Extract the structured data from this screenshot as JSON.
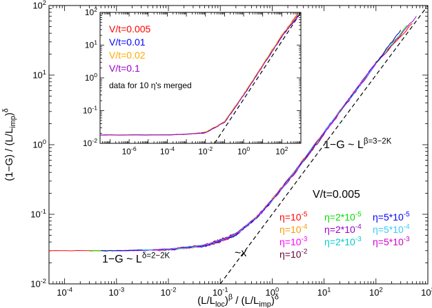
{
  "chart_data": [
    {
      "type": "line",
      "scale": "log-log",
      "xlabel": "(L/L_loc)^β / (L/L_imp)^δ",
      "ylabel": "(1−G) / (L/L_imp)^δ",
      "xlim": [
        5e-05,
        1000
      ],
      "ylim": [
        0.01,
        100
      ],
      "x_ticks": [
        "10^-4",
        "10^-3",
        "10^-2",
        "10^-1",
        "10^0",
        "10^1",
        "10^2",
        "10^3"
      ],
      "y_ticks": [
        "10^-2",
        "10^-1",
        "10^0",
        "10^1",
        "10^2"
      ],
      "legend_title": "V/t=0.005",
      "legend": [
        {
          "name": "η=10^-5",
          "color": "#ff0000"
        },
        {
          "name": "η=10^-4",
          "color": "#ff9900"
        },
        {
          "name": "η=10^-3",
          "color": "#ff00ff"
        },
        {
          "name": "η=10^-2",
          "color": "#660033"
        },
        {
          "name": "η=2*10^-5",
          "color": "#00dd00"
        },
        {
          "name": "η=2*10^-4",
          "color": "#9900cc"
        },
        {
          "name": "η=2*10^-3",
          "color": "#00cccc"
        },
        {
          "name": "η=5*10^-5",
          "color": "#0000ff"
        },
        {
          "name": "η=5*10^-4",
          "color": "#33ccff"
        },
        {
          "name": "η=5*10^-3",
          "color": "#cc00cc"
        }
      ],
      "annotations": [
        {
          "text": "1−G ~ L^{β=3−2K}"
        },
        {
          "text": "1−G ~ L^{δ=2−2K}"
        },
        {
          "text": "~x"
        }
      ],
      "series": [
        {
          "color": "#ff0000",
          "x": [
            5e-05,
            0.001,
            0.01,
            0.05,
            0.1,
            0.2,
            0.5,
            1,
            3,
            10,
            30,
            100,
            500
          ],
          "y": [
            0.03,
            0.03,
            0.031,
            0.035,
            0.04,
            0.05,
            0.09,
            0.16,
            0.45,
            1.5,
            4.5,
            15,
            55
          ]
        },
        {
          "color": "#ff9900",
          "x": [
            0.0003,
            0.001,
            0.01,
            0.05,
            0.1,
            0.2,
            0.5,
            1,
            3,
            10,
            30,
            100,
            300
          ],
          "y": [
            0.03,
            0.03,
            0.031,
            0.035,
            0.041,
            0.052,
            0.092,
            0.165,
            0.46,
            1.5,
            4.5,
            15,
            45
          ]
        },
        {
          "color": "#ff00ff",
          "x": [
            0.002,
            0.01,
            0.05,
            0.1,
            0.2,
            0.5,
            1,
            3,
            10,
            30,
            100
          ],
          "y": [
            0.03,
            0.031,
            0.036,
            0.042,
            0.052,
            0.09,
            0.16,
            0.45,
            1.45,
            4.4,
            14.5
          ]
        },
        {
          "color": "#660033",
          "x": [
            0.02,
            0.05,
            0.1,
            0.2,
            0.5,
            1,
            3,
            10
          ],
          "y": [
            0.033,
            0.036,
            0.043,
            0.053,
            0.09,
            0.16,
            0.44,
            1.4
          ]
        },
        {
          "color": "#00dd00",
          "x": [
            0.0003,
            0.001,
            0.01,
            0.05,
            0.1,
            0.2,
            0.5,
            1,
            3,
            10,
            30,
            100,
            400
          ],
          "y": [
            0.03,
            0.03,
            0.031,
            0.036,
            0.042,
            0.051,
            0.089,
            0.158,
            0.44,
            1.48,
            4.4,
            14.8,
            52
          ]
        },
        {
          "color": "#9900cc",
          "x": [
            0.001,
            0.01,
            0.05,
            0.1,
            0.2,
            0.5,
            1,
            3,
            10,
            30,
            100,
            600
          ],
          "y": [
            0.03,
            0.031,
            0.035,
            0.041,
            0.05,
            0.088,
            0.155,
            0.43,
            1.45,
            4.3,
            14.5,
            70
          ]
        },
        {
          "color": "#00cccc",
          "x": [
            0.005,
            0.01,
            0.05,
            0.1,
            0.2,
            0.5,
            1,
            3,
            10,
            30,
            100
          ],
          "y": [
            0.031,
            0.031,
            0.036,
            0.042,
            0.052,
            0.09,
            0.16,
            0.45,
            1.5,
            4.4,
            14.6
          ]
        },
        {
          "color": "#0000ff",
          "x": [
            0.0005,
            0.001,
            0.01,
            0.05,
            0.1,
            0.2,
            0.5,
            1,
            3,
            10,
            30,
            100,
            300
          ],
          "y": [
            0.03,
            0.03,
            0.031,
            0.035,
            0.041,
            0.05,
            0.089,
            0.16,
            0.45,
            1.5,
            4.5,
            15,
            44
          ]
        },
        {
          "color": "#33ccff",
          "x": [
            0.003,
            0.01,
            0.05,
            0.1,
            0.2,
            0.5,
            1,
            3,
            10,
            30,
            100
          ],
          "y": [
            0.031,
            0.031,
            0.036,
            0.042,
            0.052,
            0.09,
            0.16,
            0.45,
            1.5,
            4.5,
            15
          ]
        },
        {
          "color": "#cc00cc",
          "x": [
            0.005,
            0.01,
            0.05,
            0.1,
            0.2,
            0.5,
            1,
            3,
            10,
            30,
            100
          ],
          "y": [
            0.031,
            0.031,
            0.036,
            0.042,
            0.052,
            0.09,
            0.16,
            0.45,
            1.5,
            4.5,
            15
          ]
        }
      ],
      "guides": [
        {
          "kind": "dashed",
          "x": [
            0.1,
            1000
          ],
          "y": [
            0.01,
            100
          ]
        }
      ]
    },
    {
      "type": "line",
      "scale": "log-log",
      "xlim": [
        3e-08,
        1000
      ],
      "ylim": [
        0.01,
        100
      ],
      "x_ticks": [
        "10^-6",
        "10^-4",
        "10^-2",
        "10^0",
        "10^2"
      ],
      "y_ticks": [
        "10^-2",
        "10^-1",
        "10^0",
        "10^1",
        "10^2"
      ],
      "legend": [
        {
          "name": "V/t=0.005",
          "color": "#ff0000"
        },
        {
          "name": "V/t=0.01",
          "color": "#0000ff"
        },
        {
          "name": "V/t=0.02",
          "color": "#ffaa00"
        },
        {
          "name": "V/t=0.1",
          "color": "#9900cc"
        }
      ],
      "note": "data for 10 η's merged",
      "series": [
        {
          "color": "#ff0000",
          "x": [
            3e-08,
            0.0001,
            0.001,
            0.01,
            0.1,
            1,
            10,
            100,
            700
          ],
          "y": [
            0.018,
            0.018,
            0.019,
            0.021,
            0.045,
            0.3,
            2.5,
            20,
            90
          ]
        },
        {
          "color": "#0000ff",
          "x": [
            3e-08,
            0.0001,
            0.001,
            0.01,
            0.1,
            1,
            10,
            100,
            700
          ],
          "y": [
            0.018,
            0.018,
            0.019,
            0.021,
            0.045,
            0.3,
            2.4,
            19,
            80
          ]
        },
        {
          "color": "#ffaa00",
          "x": [
            3e-08,
            0.0001,
            0.001,
            0.01,
            0.1,
            1,
            10,
            100,
            700
          ],
          "y": [
            0.018,
            0.018,
            0.019,
            0.022,
            0.047,
            0.31,
            2.5,
            20,
            85
          ]
        },
        {
          "color": "#9900cc",
          "x": [
            3e-08,
            0.0001,
            0.001,
            0.01,
            0.1,
            1,
            10,
            100,
            700
          ],
          "y": [
            0.018,
            0.018,
            0.019,
            0.021,
            0.044,
            0.29,
            2.3,
            18,
            75
          ]
        }
      ],
      "guides": [
        {
          "kind": "dashed",
          "x": [
            0.03,
            1000
          ],
          "y": [
            0.01,
            100
          ]
        }
      ]
    }
  ]
}
